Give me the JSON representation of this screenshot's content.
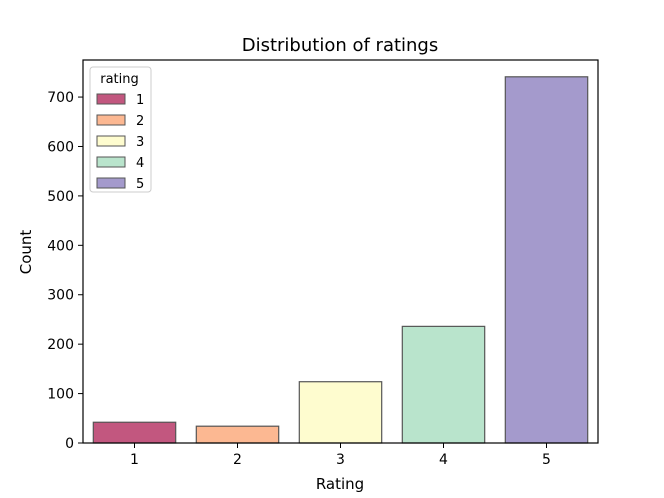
{
  "chart_data": {
    "type": "bar",
    "title": "Distribution of ratings",
    "xlabel": "Rating",
    "ylabel": "Count",
    "categories": [
      "1",
      "2",
      "3",
      "4",
      "5"
    ],
    "values": [
      42,
      34,
      124,
      236,
      741
    ],
    "ylim": [
      0,
      775
    ],
    "yticks": [
      0,
      100,
      200,
      300,
      400,
      500,
      600,
      700
    ],
    "colors": [
      "#c2577f",
      "#fcb892",
      "#fefccf",
      "#b9e4cc",
      "#a49acc"
    ],
    "grid": false,
    "legend": {
      "title": "rating",
      "placement": "top-left",
      "entries": [
        "1",
        "2",
        "3",
        "4",
        "5"
      ]
    }
  }
}
